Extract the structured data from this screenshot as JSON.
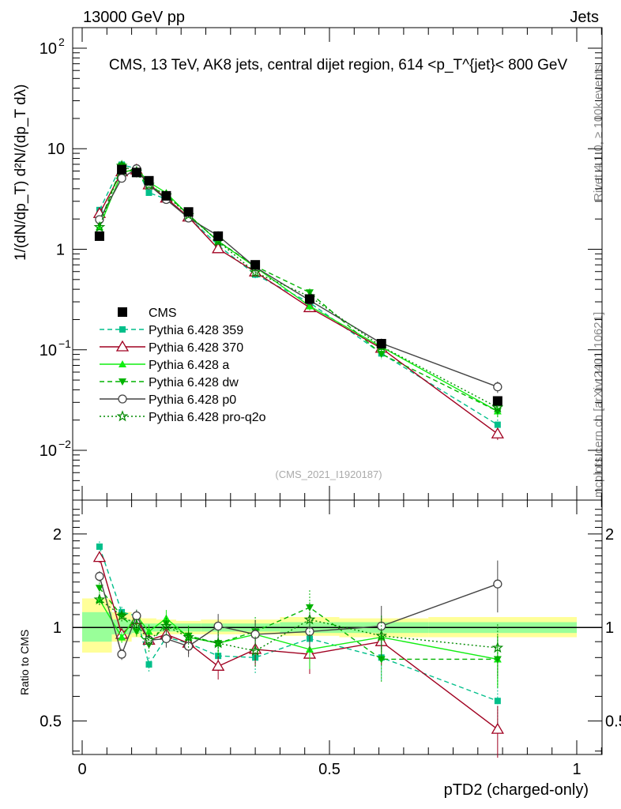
{
  "header": {
    "energy": "13000 GeV pp",
    "category": "Jets",
    "rivet": "Rivet 4.1.0, ≥ 100k events",
    "site": "mcplots.cern.ch [arXiv:2401.10621]",
    "analysis": "(CMS_2021_I1920187)"
  },
  "chart_data": [
    {
      "type": "line",
      "title": "CMS, 13 TeV, AK8 jets, central dijet region, 614 <p_T^{jet}< 800 GeV",
      "ylabel": "1/(dN/dp_T) d²N/(dp_T dλ)",
      "xlabel": "pTD2 (charged-only)",
      "yscale": "log",
      "ylim": [
        0.0032,
        160
      ],
      "xlim": [
        -0.02,
        1.05
      ],
      "yticks": [
        {
          "v": 100,
          "b": "10",
          "e": "2"
        },
        {
          "v": 10,
          "b": "10",
          "e": ""
        },
        {
          "v": 1,
          "b": "1",
          "e": ""
        },
        {
          "v": 0.1,
          "b": "10",
          "e": "−1"
        },
        {
          "v": 0.01,
          "b": "10",
          "e": "−2"
        }
      ],
      "x": [
        0.035,
        0.08,
        0.11,
        0.135,
        0.17,
        0.215,
        0.275,
        0.35,
        0.46,
        0.605,
        0.84
      ],
      "data": {
        "name": "CMS",
        "values": [
          1.35,
          6.2,
          5.8,
          4.8,
          3.4,
          2.35,
          1.35,
          0.7,
          0.32,
          0.115,
          0.031
        ]
      },
      "legend_position": "middle-left"
    },
    {
      "type": "line",
      "ylabel": "Ratio to CMS",
      "yscale": "log",
      "ylim": [
        0.39,
        2.57
      ],
      "yticks": [
        {
          "v": 2,
          "l": "2"
        },
        {
          "v": 1,
          "l": "1"
        },
        {
          "v": 0.5,
          "l": "0.5"
        }
      ],
      "xticks": [
        {
          "v": 0,
          "l": "0"
        },
        {
          "v": 0.5,
          "l": "0.5"
        },
        {
          "v": 1,
          "l": "1"
        }
      ],
      "bands": [
        {
          "x": [
            0,
            0.06
          ],
          "tot": [
            0.83,
            1.24
          ],
          "stat": [
            0.9,
            1.12
          ]
        },
        {
          "x": [
            0.06,
            0.1
          ],
          "tot": [
            0.9,
            1.12
          ],
          "stat": [
            0.95,
            1.06
          ]
        },
        {
          "x": [
            0.1,
            0.12
          ],
          "tot": [
            0.93,
            1.08
          ],
          "stat": [
            0.96,
            1.04
          ]
        },
        {
          "x": [
            0.12,
            0.15
          ],
          "tot": [
            0.94,
            1.07
          ],
          "stat": [
            0.97,
            1.03
          ]
        },
        {
          "x": [
            0.15,
            0.19
          ],
          "tot": [
            0.95,
            1.06
          ],
          "stat": [
            0.97,
            1.03
          ]
        },
        {
          "x": [
            0.19,
            0.24
          ],
          "tot": [
            0.95,
            1.05
          ],
          "stat": [
            0.97,
            1.03
          ]
        },
        {
          "x": [
            0.24,
            0.31
          ],
          "tot": [
            0.95,
            1.06
          ],
          "stat": [
            0.97,
            1.03
          ]
        },
        {
          "x": [
            0.31,
            0.4
          ],
          "tot": [
            0.95,
            1.06
          ],
          "stat": [
            0.97,
            1.03
          ]
        },
        {
          "x": [
            0.4,
            0.52
          ],
          "tot": [
            0.94,
            1.08
          ],
          "stat": [
            0.96,
            1.04
          ]
        },
        {
          "x": [
            0.52,
            0.7
          ],
          "tot": [
            0.93,
            1.07
          ],
          "stat": [
            0.96,
            1.04
          ]
        },
        {
          "x": [
            0.7,
            1.0
          ],
          "tot": [
            0.93,
            1.08
          ],
          "stat": [
            0.96,
            1.04
          ]
        }
      ],
      "series": [
        {
          "name": "Pythia 6.428 359",
          "color": "#00bf8a",
          "dash": "6,4",
          "marker": "square",
          "values": [
            1.82,
            1.12,
            1.09,
            0.76,
            0.93,
            0.89,
            0.81,
            0.8,
            0.92,
            0.8,
            0.58
          ]
        },
        {
          "name": "Pythia 6.428 370",
          "color": "#a00020",
          "dash": "",
          "marker": "triangle-open",
          "values": [
            1.68,
            0.95,
            1.06,
            0.91,
            0.95,
            0.89,
            0.75,
            0.85,
            0.82,
            0.9,
            0.47
          ]
        },
        {
          "name": "Pythia 6.428 a",
          "color": "#11ee11",
          "dash": "",
          "marker": "triangle",
          "values": [
            1.23,
            0.93,
            1.09,
            0.97,
            1.07,
            0.93,
            0.89,
            0.95,
            0.85,
            0.93,
            0.79
          ]
        },
        {
          "name": "Pythia 6.428 dw",
          "color": "#00b400",
          "dash": "6,4",
          "marker": "triangle-down",
          "values": [
            1.34,
            1.09,
            0.97,
            0.88,
            1.03,
            0.94,
            0.89,
            0.97,
            1.16,
            0.79,
            0.79
          ]
        },
        {
          "name": "Pythia 6.428 p0",
          "color": "#444444",
          "dash": "",
          "marker": "circle-open",
          "values": [
            1.46,
            0.82,
            1.09,
            0.91,
            0.92,
            0.87,
            1.01,
            0.95,
            0.97,
            1.01,
            1.38
          ]
        },
        {
          "name": "Pythia 6.428 pro-q2o",
          "color": "#008a00",
          "dash": "2,3",
          "marker": "star",
          "values": [
            1.23,
            1.09,
            1.02,
            0.91,
            1.01,
            0.93,
            0.89,
            0.84,
            1.06,
            0.94,
            0.86
          ]
        }
      ]
    }
  ]
}
